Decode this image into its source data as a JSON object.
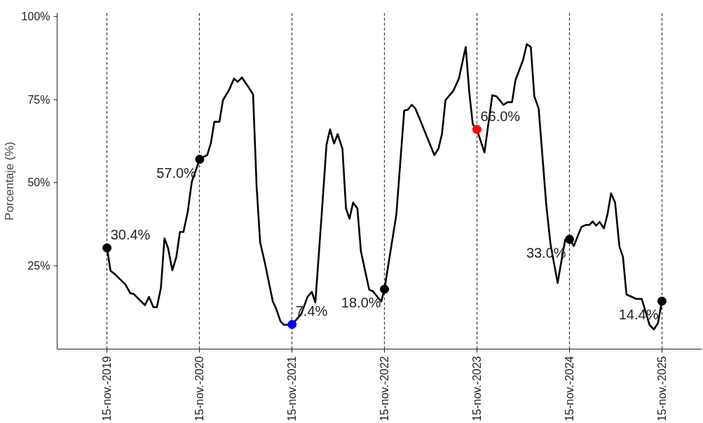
{
  "chart_data": {
    "type": "line",
    "ylabel": "Porcentaje (%)",
    "xlim": [
      "2019-05-02",
      "2026-04-22"
    ],
    "ylim": [
      0,
      101
    ],
    "xticks": [
      {
        "value": "2019-11-15",
        "label": "15-nov.-2019"
      },
      {
        "value": "2020-11-15",
        "label": "15-nov.-2020"
      },
      {
        "value": "2021-11-15",
        "label": "15-nov.-2021"
      },
      {
        "value": "2022-11-15",
        "label": "15-nov.-2022"
      },
      {
        "value": "2023-11-15",
        "label": "15-nov.-2023"
      },
      {
        "value": "2024-11-15",
        "label": "15-nov.-2024"
      },
      {
        "value": "2025-11-15",
        "label": "15-nov.-2025"
      }
    ],
    "yticks": [
      {
        "value": 25,
        "label": "25%"
      },
      {
        "value": 50,
        "label": "50%"
      },
      {
        "value": 75,
        "label": "75%"
      },
      {
        "value": 100,
        "label": "100%"
      }
    ],
    "grid": "x",
    "line_style": "solid",
    "series": [
      {
        "marker": "none",
        "color": "#000000",
        "x": [
          "2019-11-15",
          "2019-11-29",
          "2019-12-15",
          "2020-01-26",
          "2020-02-15",
          "2020-02-28",
          "2020-04-13",
          "2020-04-29",
          "2020-05-16",
          "2020-05-30",
          "2020-06-15",
          "2020-06-29",
          "2020-07-13",
          "2020-07-30",
          "2020-08-15",
          "2020-08-29",
          "2020-09-12",
          "2020-09-29",
          "2020-10-15",
          "2020-11-15",
          "2020-11-29",
          "2020-12-15",
          "2020-12-29",
          "2021-01-12",
          "2021-02-01",
          "2021-02-15",
          "2021-03-12",
          "2021-03-31",
          "2021-04-14",
          "2021-05-01",
          "2021-05-28",
          "2021-06-14",
          "2021-06-28",
          "2021-07-12",
          "2021-07-31",
          "2021-08-31",
          "2021-09-13",
          "2021-09-30",
          "2021-10-14",
          "2021-10-28",
          "2021-11-15",
          "2021-12-21",
          "2022-01-15",
          "2022-02-01",
          "2022-02-15",
          "2022-03-14",
          "2022-03-31",
          "2022-04-14",
          "2022-04-30",
          "2022-05-14",
          "2022-06-02",
          "2022-06-16",
          "2022-06-30",
          "2022-07-14",
          "2022-07-31",
          "2022-08-14",
          "2022-08-30",
          "2022-09-16",
          "2022-09-30",
          "2022-11-02",
          "2022-11-15",
          "2023-01-01",
          "2023-02-01",
          "2023-02-15",
          "2023-03-03",
          "2023-03-17",
          "2023-04-03",
          "2023-05-31",
          "2023-06-16",
          "2023-06-30",
          "2023-07-14",
          "2023-08-14",
          "2023-09-05",
          "2023-10-02",
          "2023-10-16",
          "2023-10-30",
          "2023-11-15",
          "2023-12-15",
          "2024-01-15",
          "2024-02-01",
          "2024-02-28",
          "2024-03-16",
          "2024-04-02",
          "2024-04-15",
          "2024-05-16",
          "2024-05-30",
          "2024-06-15",
          "2024-06-29",
          "2024-07-16",
          "2024-08-02",
          "2024-08-15",
          "2024-09-01",
          "2024-09-29",
          "2024-10-18",
          "2024-10-29",
          "2024-11-15",
          "2024-12-02",
          "2024-12-15",
          "2025-01-01",
          "2025-01-18",
          "2025-02-01",
          "2025-02-15",
          "2025-02-28",
          "2025-03-14",
          "2025-03-31",
          "2025-04-14",
          "2025-04-28",
          "2025-05-14",
          "2025-05-31",
          "2025-06-14",
          "2025-06-28",
          "2025-08-05",
          "2025-08-27",
          "2025-09-27",
          "2025-10-14",
          "2025-10-30",
          "2025-11-15"
        ],
        "values": [
          30.4,
          23.5,
          22.6,
          19.5,
          16.8,
          16.6,
          13.2,
          15.7,
          12.6,
          12.6,
          18.4,
          33.3,
          30.4,
          23.7,
          27.7,
          35.2,
          35.2,
          41.3,
          50.3,
          57.0,
          57.7,
          58.3,
          61.8,
          68.3,
          68.3,
          74.8,
          78.0,
          81.3,
          80.3,
          81.6,
          78.6,
          76.5,
          48.8,
          32.1,
          25.8,
          14.3,
          12.2,
          8.4,
          7.3,
          7.3,
          7.4,
          10.5,
          15.7,
          17.2,
          14.0,
          42.6,
          61.4,
          66.0,
          61.8,
          64.6,
          60.2,
          42.3,
          39.2,
          44.0,
          42.3,
          29.4,
          23.7,
          17.8,
          17.4,
          14.3,
          18.0,
          40.5,
          71.7,
          71.9,
          73.4,
          72.3,
          69.2,
          58.3,
          60.2,
          64.6,
          74.8,
          77.6,
          81.3,
          90.8,
          77.1,
          67.5,
          66.0,
          59.1,
          76.3,
          75.9,
          73.4,
          74.2,
          74.2,
          80.7,
          87.0,
          91.6,
          90.8,
          75.9,
          72.3,
          56.0,
          43.4,
          31.4,
          19.9,
          28.3,
          32.9,
          33.0,
          31.0,
          33.5,
          36.7,
          37.3,
          37.3,
          38.4,
          37.1,
          38.2,
          36.3,
          40.5,
          46.8,
          44.0,
          30.8,
          27.7,
          16.4,
          15.1,
          15.1,
          7.3,
          5.9,
          7.8,
          14.4
        ]
      },
      {
        "type": "scatter",
        "marker": "circle",
        "x": [
          "2019-11-15",
          "2020-11-15",
          "2021-11-15",
          "2022-11-15",
          "2023-11-15",
          "2024-11-15",
          "2025-11-15"
        ],
        "values": [
          30.4,
          57.0,
          7.4,
          18.0,
          66.0,
          33.0,
          14.4
        ],
        "colors": [
          "#000000",
          "#000000",
          "#0000ff",
          "#000000",
          "#ff0000",
          "#000000",
          "#000000"
        ],
        "value_labels": [
          "30.4%",
          "57.0%",
          "7.4%",
          "18.0%",
          "66.0%",
          "33.0%",
          "14.4%"
        ]
      }
    ]
  }
}
